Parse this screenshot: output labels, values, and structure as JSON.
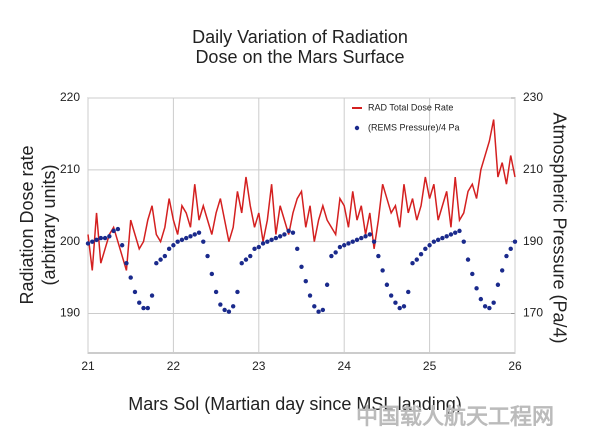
{
  "chart_data": {
    "type": "line",
    "title": [
      "Daily Variation of Radiation",
      "Dose on the Mars Surface"
    ],
    "ylabel": [
      "Radiation Dose rate",
      "(arbitrary units)"
    ],
    "y2label": "Atmospheric Pressure (Pa/4)",
    "xlabel": "Mars Sol (Martian day since MSL landing)",
    "watermark": "中国载人航天工程网",
    "legend": "top-right",
    "grid": true,
    "xlim": [
      21,
      26
    ],
    "xticks": [
      21,
      22,
      23,
      24,
      25,
      26
    ],
    "ylim": [
      184.5,
      220
    ],
    "yticks": [
      190,
      200,
      210,
      220
    ],
    "y2lim": [
      159,
      230
    ],
    "y2ticks": [
      170,
      190,
      210,
      230
    ],
    "x": [
      21,
      21.05,
      21.1,
      21.15,
      21.2,
      21.25,
      21.3,
      21.35,
      21.4,
      21.45,
      21.5,
      21.55,
      21.6,
      21.65,
      21.7,
      21.75,
      21.8,
      21.85,
      21.9,
      21.95,
      22,
      22.05,
      22.1,
      22.15,
      22.2,
      22.25,
      22.3,
      22.35,
      22.4,
      22.45,
      22.5,
      22.55,
      22.6,
      22.65,
      22.7,
      22.75,
      22.8,
      22.85,
      22.9,
      22.95,
      23,
      23.05,
      23.1,
      23.15,
      23.2,
      23.25,
      23.3,
      23.35,
      23.4,
      23.45,
      23.5,
      23.55,
      23.6,
      23.65,
      23.7,
      23.75,
      23.8,
      23.85,
      23.9,
      23.95,
      24,
      24.05,
      24.1,
      24.15,
      24.2,
      24.25,
      24.3,
      24.35,
      24.4,
      24.45,
      24.5,
      24.55,
      24.6,
      24.65,
      24.7,
      24.75,
      24.8,
      24.85,
      24.9,
      24.95,
      25,
      25.05,
      25.1,
      25.15,
      25.2,
      25.25,
      25.3,
      25.35,
      25.4,
      25.45,
      25.5,
      25.55,
      25.6,
      25.65,
      25.7,
      25.75,
      25.8,
      25.85,
      25.9,
      25.95,
      26
    ],
    "series": [
      {
        "name": "RAD Total Dose Rate",
        "type": "line",
        "color": "#d42020",
        "values": [
          201,
          196,
          204,
          197,
          199,
          201,
          202,
          200,
          198,
          196,
          203,
          201,
          199,
          200,
          203,
          205,
          201,
          200,
          202,
          206,
          203,
          201,
          205,
          204,
          202,
          208,
          203,
          205,
          203,
          201,
          204,
          206,
          203,
          200,
          202,
          207,
          204,
          209,
          205,
          202,
          204,
          200,
          203,
          208,
          201,
          205,
          203,
          201,
          204,
          206,
          207,
          202,
          205,
          200,
          203,
          205,
          203,
          202,
          201,
          206,
          205,
          202,
          207,
          203,
          205,
          201,
          204,
          199,
          203,
          208,
          206,
          204,
          205,
          202,
          208,
          204,
          206,
          203,
          205,
          209,
          206,
          208,
          203,
          205,
          207,
          202,
          209,
          203,
          204,
          207,
          208,
          206,
          210,
          212,
          214,
          217,
          209,
          211,
          208,
          212,
          209
        ]
      },
      {
        "name": "(REMS Pressure)/4 Pa",
        "type": "scatter",
        "axis": "y2",
        "color": "#1a2a8c",
        "values": [
          189.5,
          190,
          190.5,
          191,
          191,
          191.5,
          193,
          193.5,
          189,
          184,
          180,
          176,
          173,
          171.5,
          171.5,
          175,
          184,
          185,
          186,
          188,
          189,
          190,
          190.5,
          191,
          191.5,
          192,
          192.5,
          190,
          186,
          181,
          176,
          172.5,
          171,
          170.5,
          172,
          176,
          184,
          185,
          186,
          188,
          188.5,
          189.5,
          190,
          190.5,
          191,
          191.5,
          192,
          193,
          192.5,
          188,
          183,
          179,
          175,
          172,
          170.5,
          171,
          178,
          186,
          187,
          188.5,
          189,
          189.5,
          190,
          190.5,
          191,
          191.5,
          192,
          190,
          186,
          182,
          178,
          175,
          173,
          171.5,
          172,
          176,
          184,
          185,
          186.5,
          188,
          189,
          190,
          190.5,
          191,
          191.5,
          192,
          192.5,
          193,
          190,
          185,
          181,
          177,
          174,
          172,
          171.5,
          173,
          178,
          182,
          186,
          188,
          190
        ]
      }
    ]
  }
}
